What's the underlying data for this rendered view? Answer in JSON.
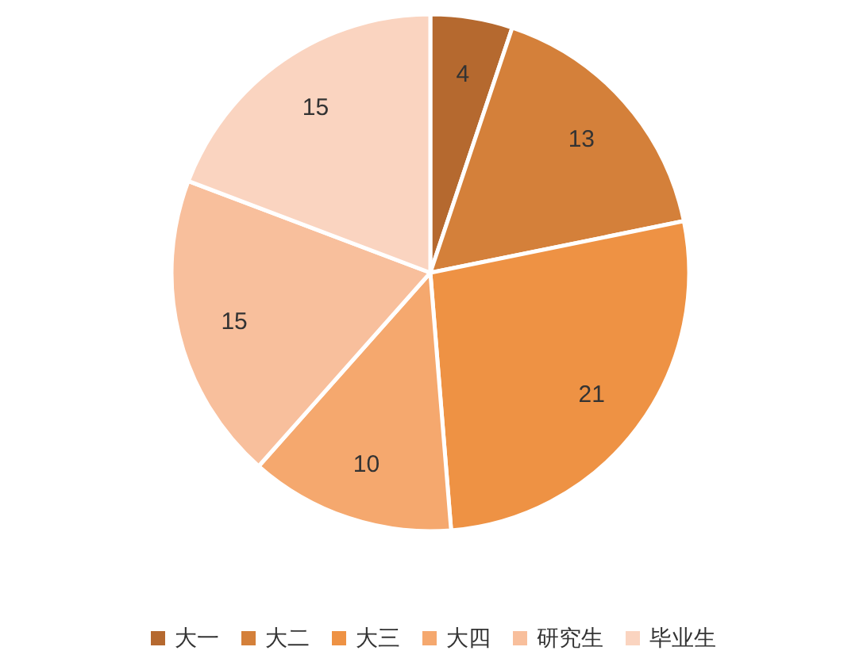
{
  "chart_data": {
    "type": "pie",
    "categories": [
      "大一",
      "大二",
      "大三",
      "大四",
      "研究生",
      "毕业生"
    ],
    "values": [
      4,
      13,
      21,
      10,
      15,
      15
    ],
    "colors": [
      "#b5692f",
      "#d4803a",
      "#ee9244",
      "#f5a86e",
      "#f8bf9c",
      "#fad4c0"
    ],
    "data_labels": true,
    "legend": "bottom"
  }
}
